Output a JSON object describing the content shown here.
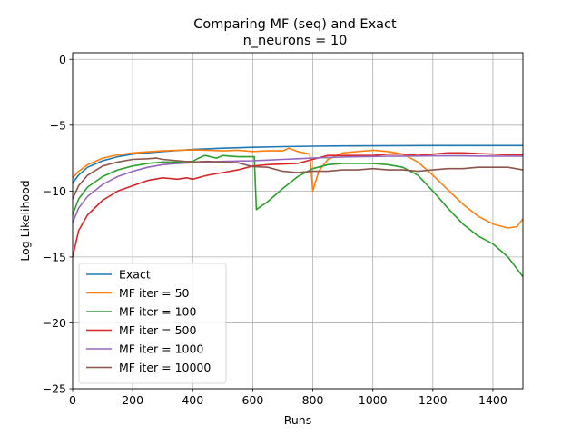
{
  "chart_data": {
    "type": "line",
    "title": "Comparing MF (seq) and Exact",
    "subtitle": "n_neurons = 10",
    "xlabel": "Runs",
    "ylabel": "Log Likelihood",
    "xlim": [
      0,
      1500
    ],
    "ylim": [
      -25,
      0.5
    ],
    "xticks": [
      0,
      200,
      400,
      600,
      800,
      1000,
      1200,
      1400
    ],
    "yticks": [
      0,
      -5,
      -10,
      -15,
      -20,
      -25
    ],
    "xtick_labels": [
      "0",
      "200",
      "400",
      "600",
      "800",
      "1000",
      "1200",
      "1400"
    ],
    "ytick_labels": [
      "0",
      "−5",
      "−10",
      "−15",
      "−20",
      "−25"
    ],
    "grid": true,
    "legend_position": "lower-left",
    "series": [
      {
        "name": "Exact",
        "color": "#1f77b4",
        "points": [
          [
            0,
            -9.4
          ],
          [
            20,
            -8.8
          ],
          [
            50,
            -8.2
          ],
          [
            100,
            -7.7
          ],
          [
            150,
            -7.4
          ],
          [
            200,
            -7.2
          ],
          [
            300,
            -7.0
          ],
          [
            400,
            -6.85
          ],
          [
            500,
            -6.75
          ],
          [
            600,
            -6.68
          ],
          [
            700,
            -6.63
          ],
          [
            800,
            -6.6
          ],
          [
            900,
            -6.58
          ],
          [
            1000,
            -6.57
          ],
          [
            1100,
            -6.56
          ],
          [
            1200,
            -6.55
          ],
          [
            1300,
            -6.55
          ],
          [
            1400,
            -6.55
          ],
          [
            1500,
            -6.55
          ]
        ]
      },
      {
        "name": "MF iter = 50",
        "color": "#ff7f0e",
        "points": [
          [
            0,
            -9.0
          ],
          [
            20,
            -8.5
          ],
          [
            50,
            -8.0
          ],
          [
            100,
            -7.5
          ],
          [
            150,
            -7.25
          ],
          [
            200,
            -7.1
          ],
          [
            300,
            -6.95
          ],
          [
            400,
            -6.88
          ],
          [
            450,
            -6.9
          ],
          [
            500,
            -6.95
          ],
          [
            550,
            -6.9
          ],
          [
            600,
            -7.0
          ],
          [
            650,
            -6.95
          ],
          [
            700,
            -6.95
          ],
          [
            720,
            -6.75
          ],
          [
            750,
            -7.0
          ],
          [
            790,
            -7.2
          ],
          [
            795,
            -8.5
          ],
          [
            800,
            -10.0
          ],
          [
            805,
            -9.6
          ],
          [
            820,
            -8.5
          ],
          [
            850,
            -7.6
          ],
          [
            880,
            -7.3
          ],
          [
            900,
            -7.1
          ],
          [
            950,
            -7.0
          ],
          [
            1000,
            -6.9
          ],
          [
            1050,
            -7.0
          ],
          [
            1100,
            -7.2
          ],
          [
            1150,
            -7.8
          ],
          [
            1200,
            -8.8
          ],
          [
            1250,
            -9.9
          ],
          [
            1300,
            -11.0
          ],
          [
            1350,
            -11.9
          ],
          [
            1400,
            -12.5
          ],
          [
            1450,
            -12.8
          ],
          [
            1480,
            -12.7
          ],
          [
            1500,
            -12.1
          ]
        ]
      },
      {
        "name": "MF iter = 100",
        "color": "#2ca02c",
        "points": [
          [
            0,
            -11.8
          ],
          [
            20,
            -10.6
          ],
          [
            50,
            -9.7
          ],
          [
            100,
            -8.9
          ],
          [
            150,
            -8.4
          ],
          [
            200,
            -8.1
          ],
          [
            250,
            -7.9
          ],
          [
            300,
            -7.8
          ],
          [
            350,
            -7.8
          ],
          [
            400,
            -7.75
          ],
          [
            420,
            -7.5
          ],
          [
            440,
            -7.3
          ],
          [
            480,
            -7.5
          ],
          [
            500,
            -7.3
          ],
          [
            550,
            -7.4
          ],
          [
            605,
            -7.4
          ],
          [
            608,
            -9.0
          ],
          [
            612,
            -11.4
          ],
          [
            650,
            -10.8
          ],
          [
            700,
            -9.8
          ],
          [
            750,
            -8.9
          ],
          [
            800,
            -8.3
          ],
          [
            850,
            -8.0
          ],
          [
            900,
            -7.9
          ],
          [
            950,
            -7.9
          ],
          [
            1000,
            -7.9
          ],
          [
            1050,
            -8.0
          ],
          [
            1100,
            -8.2
          ],
          [
            1150,
            -8.8
          ],
          [
            1200,
            -10.0
          ],
          [
            1250,
            -11.3
          ],
          [
            1300,
            -12.5
          ],
          [
            1350,
            -13.4
          ],
          [
            1400,
            -14.0
          ],
          [
            1450,
            -15.0
          ],
          [
            1500,
            -16.5
          ]
        ]
      },
      {
        "name": "MF iter = 500",
        "color": "#d62728",
        "points": [
          [
            0,
            -15.0
          ],
          [
            20,
            -13.0
          ],
          [
            50,
            -11.8
          ],
          [
            100,
            -10.7
          ],
          [
            150,
            -10.0
          ],
          [
            200,
            -9.6
          ],
          [
            250,
            -9.2
          ],
          [
            300,
            -9.0
          ],
          [
            350,
            -9.1
          ],
          [
            380,
            -9.0
          ],
          [
            400,
            -9.1
          ],
          [
            450,
            -8.8
          ],
          [
            500,
            -8.6
          ],
          [
            550,
            -8.4
          ],
          [
            600,
            -8.1
          ],
          [
            650,
            -8.0
          ],
          [
            700,
            -7.95
          ],
          [
            750,
            -7.9
          ],
          [
            800,
            -7.6
          ],
          [
            850,
            -7.3
          ],
          [
            900,
            -7.3
          ],
          [
            950,
            -7.3
          ],
          [
            1000,
            -7.3
          ],
          [
            1050,
            -7.2
          ],
          [
            1100,
            -7.2
          ],
          [
            1150,
            -7.3
          ],
          [
            1200,
            -7.2
          ],
          [
            1250,
            -7.1
          ],
          [
            1300,
            -7.1
          ],
          [
            1350,
            -7.15
          ],
          [
            1400,
            -7.2
          ],
          [
            1450,
            -7.25
          ],
          [
            1500,
            -7.25
          ]
        ]
      },
      {
        "name": "MF iter = 1000",
        "color": "#9467bd",
        "points": [
          [
            0,
            -12.4
          ],
          [
            20,
            -11.3
          ],
          [
            50,
            -10.4
          ],
          [
            100,
            -9.5
          ],
          [
            150,
            -8.9
          ],
          [
            200,
            -8.5
          ],
          [
            250,
            -8.2
          ],
          [
            300,
            -8.0
          ],
          [
            350,
            -7.9
          ],
          [
            400,
            -7.85
          ],
          [
            450,
            -7.8
          ],
          [
            500,
            -7.75
          ],
          [
            550,
            -7.72
          ],
          [
            600,
            -7.7
          ],
          [
            650,
            -7.65
          ],
          [
            700,
            -7.6
          ],
          [
            750,
            -7.55
          ],
          [
            800,
            -7.5
          ],
          [
            850,
            -7.45
          ],
          [
            900,
            -7.42
          ],
          [
            950,
            -7.4
          ],
          [
            1000,
            -7.38
          ],
          [
            1050,
            -7.36
          ],
          [
            1100,
            -7.35
          ],
          [
            1150,
            -7.34
          ],
          [
            1200,
            -7.33
          ],
          [
            1250,
            -7.33
          ],
          [
            1300,
            -7.33
          ],
          [
            1350,
            -7.34
          ],
          [
            1400,
            -7.35
          ],
          [
            1450,
            -7.36
          ],
          [
            1500,
            -7.36
          ]
        ]
      },
      {
        "name": "MF iter = 10000",
        "color": "#8c564b",
        "points": [
          [
            0,
            -10.6
          ],
          [
            20,
            -9.6
          ],
          [
            50,
            -8.8
          ],
          [
            100,
            -8.1
          ],
          [
            150,
            -7.8
          ],
          [
            200,
            -7.6
          ],
          [
            250,
            -7.55
          ],
          [
            280,
            -7.5
          ],
          [
            300,
            -7.6
          ],
          [
            350,
            -7.7
          ],
          [
            400,
            -7.8
          ],
          [
            450,
            -7.75
          ],
          [
            500,
            -7.8
          ],
          [
            550,
            -7.85
          ],
          [
            600,
            -8.15
          ],
          [
            650,
            -8.2
          ],
          [
            700,
            -8.5
          ],
          [
            750,
            -8.6
          ],
          [
            800,
            -8.5
          ],
          [
            850,
            -8.5
          ],
          [
            900,
            -8.4
          ],
          [
            950,
            -8.4
          ],
          [
            1000,
            -8.3
          ],
          [
            1050,
            -8.4
          ],
          [
            1100,
            -8.4
          ],
          [
            1150,
            -8.5
          ],
          [
            1200,
            -8.4
          ],
          [
            1250,
            -8.3
          ],
          [
            1300,
            -8.3
          ],
          [
            1350,
            -8.2
          ],
          [
            1400,
            -8.2
          ],
          [
            1450,
            -8.2
          ],
          [
            1500,
            -8.4
          ]
        ]
      }
    ]
  }
}
